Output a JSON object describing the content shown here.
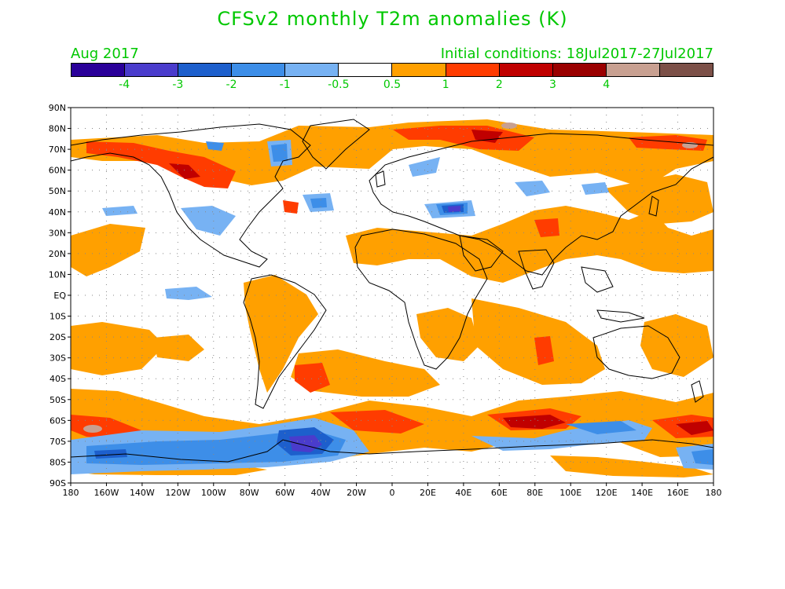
{
  "title": "CFSv2 monthly T2m anomalies (K)",
  "subtitle_left": "Aug 2017",
  "subtitle_right": "Initial conditions: 18Jul2017-27Jul2017",
  "colorbar": {
    "colors": [
      "#2a0099",
      "#4a3ccc",
      "#1d5fcc",
      "#3d8ee8",
      "#77b2f3",
      "#ffffff",
      "#ffa000",
      "#ff3c00",
      "#c00000",
      "#9a0000",
      "#c8a091",
      "#7c5048"
    ],
    "labels": [
      "-4",
      "-3",
      "-2",
      "-1",
      "-0.5",
      "0.5",
      "1",
      "2",
      "3",
      "4"
    ]
  },
  "map": {
    "lat_labels": [
      "90N",
      "80N",
      "70N",
      "60N",
      "50N",
      "40N",
      "30N",
      "20N",
      "10N",
      "EQ",
      "10S",
      "20S",
      "30S",
      "40S",
      "50S",
      "60S",
      "70S",
      "80S",
      "90S"
    ],
    "lon_labels": [
      "180",
      "160W",
      "140W",
      "120W",
      "100W",
      "80W",
      "60W",
      "40W",
      "20W",
      "0",
      "20E",
      "40E",
      "60E",
      "80E",
      "100E",
      "120E",
      "140E",
      "160E",
      "180"
    ]
  }
}
